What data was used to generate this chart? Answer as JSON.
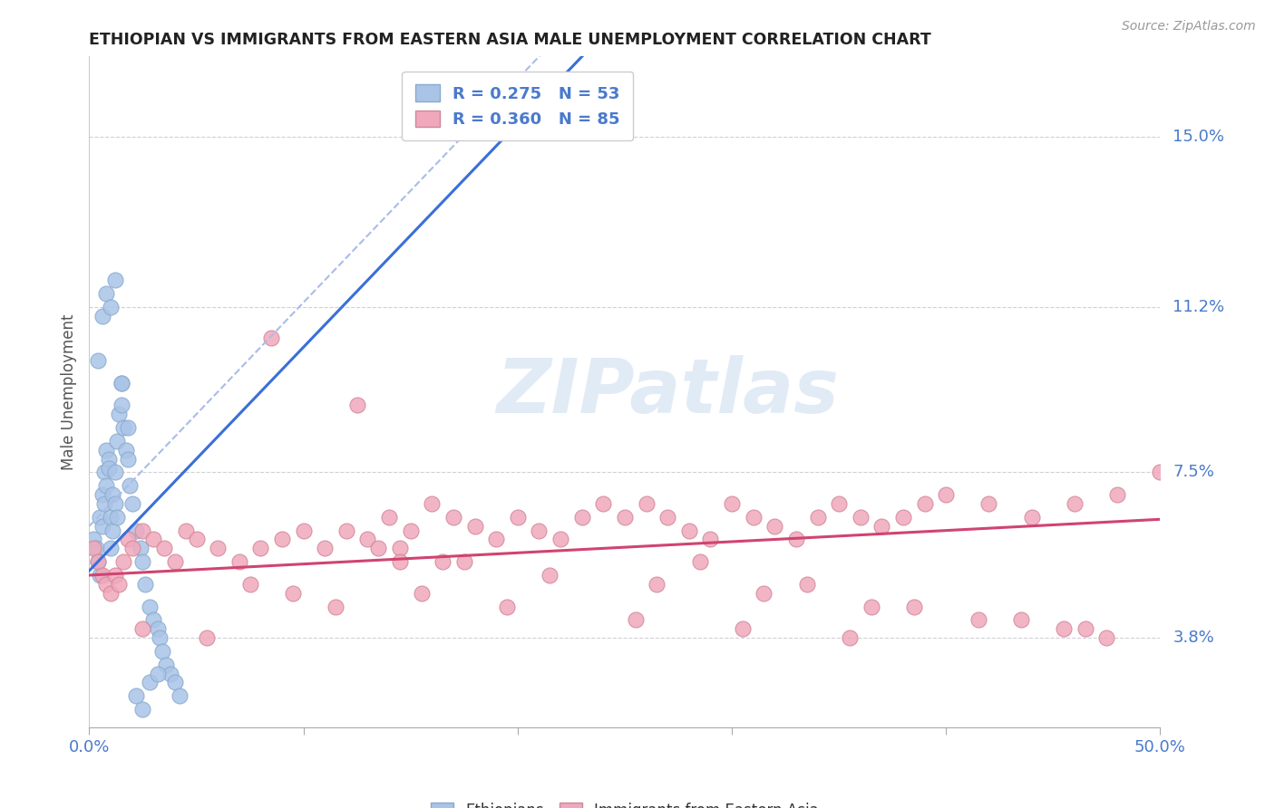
{
  "title": "ETHIOPIAN VS IMMIGRANTS FROM EASTERN ASIA MALE UNEMPLOYMENT CORRELATION CHART",
  "source": "Source: ZipAtlas.com",
  "ylabel": "Male Unemployment",
  "ytick_labels": [
    "15.0%",
    "11.2%",
    "7.5%",
    "3.8%"
  ],
  "ytick_values": [
    0.15,
    0.112,
    0.075,
    0.038
  ],
  "xlim": [
    0.0,
    0.5
  ],
  "ylim": [
    0.018,
    0.168
  ],
  "watermark": "ZIPatlas",
  "background_color": "#ffffff",
  "grid_color": "#d0d0d8",
  "ethiopian_color": "#aac4e8",
  "eastern_asia_color": "#f0a8bc",
  "ethiopian_edge_color": "#88aacc",
  "eastern_asia_edge_color": "#d08898",
  "trend_blue_color": "#3a6fd8",
  "trend_blue_dashed_color": "#aabce8",
  "trend_pink_color": "#d04470",
  "axis_label_color": "#4a7acc",
  "tick_label_color": "#4a7acc",
  "ethiopians_scatter_x": [
    0.002,
    0.003,
    0.004,
    0.005,
    0.005,
    0.006,
    0.006,
    0.007,
    0.007,
    0.008,
    0.008,
    0.009,
    0.009,
    0.01,
    0.01,
    0.011,
    0.011,
    0.012,
    0.012,
    0.013,
    0.013,
    0.014,
    0.015,
    0.015,
    0.016,
    0.017,
    0.018,
    0.019,
    0.02,
    0.022,
    0.024,
    0.025,
    0.026,
    0.028,
    0.03,
    0.032,
    0.033,
    0.034,
    0.036,
    0.038,
    0.04,
    0.042,
    0.004,
    0.006,
    0.008,
    0.01,
    0.012,
    0.015,
    0.018,
    0.022,
    0.025,
    0.028,
    0.032
  ],
  "ethiopians_scatter_y": [
    0.06,
    0.058,
    0.055,
    0.052,
    0.065,
    0.063,
    0.07,
    0.068,
    0.075,
    0.072,
    0.08,
    0.078,
    0.076,
    0.065,
    0.058,
    0.062,
    0.07,
    0.075,
    0.068,
    0.065,
    0.082,
    0.088,
    0.09,
    0.095,
    0.085,
    0.08,
    0.078,
    0.072,
    0.068,
    0.062,
    0.058,
    0.055,
    0.05,
    0.045,
    0.042,
    0.04,
    0.038,
    0.035,
    0.032,
    0.03,
    0.028,
    0.025,
    0.1,
    0.11,
    0.115,
    0.112,
    0.118,
    0.095,
    0.085,
    0.025,
    0.022,
    0.028,
    0.03
  ],
  "eastern_asia_scatter_x": [
    0.002,
    0.004,
    0.006,
    0.008,
    0.01,
    0.012,
    0.014,
    0.016,
    0.018,
    0.02,
    0.025,
    0.03,
    0.035,
    0.04,
    0.045,
    0.05,
    0.06,
    0.07,
    0.08,
    0.09,
    0.1,
    0.11,
    0.12,
    0.13,
    0.14,
    0.15,
    0.16,
    0.17,
    0.18,
    0.19,
    0.2,
    0.21,
    0.22,
    0.23,
    0.24,
    0.25,
    0.26,
    0.27,
    0.28,
    0.29,
    0.3,
    0.31,
    0.32,
    0.33,
    0.34,
    0.35,
    0.36,
    0.37,
    0.38,
    0.39,
    0.4,
    0.42,
    0.44,
    0.46,
    0.48,
    0.5,
    0.155,
    0.195,
    0.255,
    0.305,
    0.355,
    0.285,
    0.335,
    0.385,
    0.435,
    0.455,
    0.475,
    0.135,
    0.165,
    0.215,
    0.265,
    0.315,
    0.365,
    0.415,
    0.465,
    0.075,
    0.095,
    0.115,
    0.145,
    0.175,
    0.025,
    0.055,
    0.085,
    0.125,
    0.145
  ],
  "eastern_asia_scatter_y": [
    0.058,
    0.055,
    0.052,
    0.05,
    0.048,
    0.052,
    0.05,
    0.055,
    0.06,
    0.058,
    0.062,
    0.06,
    0.058,
    0.055,
    0.062,
    0.06,
    0.058,
    0.055,
    0.058,
    0.06,
    0.062,
    0.058,
    0.062,
    0.06,
    0.065,
    0.062,
    0.068,
    0.065,
    0.063,
    0.06,
    0.065,
    0.062,
    0.06,
    0.065,
    0.068,
    0.065,
    0.068,
    0.065,
    0.062,
    0.06,
    0.068,
    0.065,
    0.063,
    0.06,
    0.065,
    0.068,
    0.065,
    0.063,
    0.065,
    0.068,
    0.07,
    0.068,
    0.065,
    0.068,
    0.07,
    0.075,
    0.048,
    0.045,
    0.042,
    0.04,
    0.038,
    0.055,
    0.05,
    0.045,
    0.042,
    0.04,
    0.038,
    0.058,
    0.055,
    0.052,
    0.05,
    0.048,
    0.045,
    0.042,
    0.04,
    0.05,
    0.048,
    0.045,
    0.058,
    0.055,
    0.04,
    0.038,
    0.105,
    0.09,
    0.055
  ]
}
